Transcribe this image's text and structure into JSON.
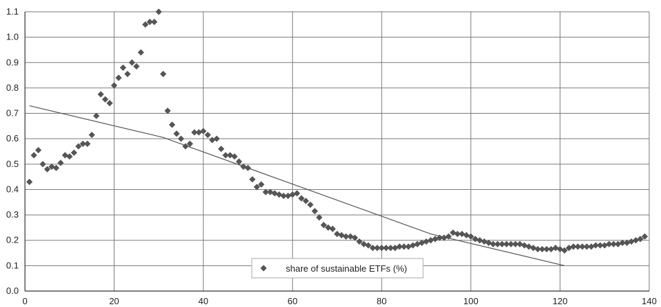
{
  "chart_data": {
    "type": "scatter",
    "title": "",
    "xlabel": "",
    "ylabel": "",
    "xlim": [
      0,
      140
    ],
    "ylim": [
      0.0,
      1.1
    ],
    "x_ticks": [
      "0",
      "20",
      "40",
      "60",
      "80",
      "100",
      "120",
      "140"
    ],
    "y_ticks": [
      "0.0",
      "0.1",
      "0.2",
      "0.3",
      "0.4",
      "0.5",
      "0.6",
      "0.7",
      "0.8",
      "0.9",
      "1.0",
      "1.1"
    ],
    "grid": true,
    "legend_position": "bottom-center",
    "colors": {
      "marker": "#555555",
      "trend": "#555555",
      "grid": "#7a7a7a",
      "axis": "#333333"
    },
    "series": [
      {
        "name": "share of sustainable ETFs (%)",
        "marker": "diamond",
        "x": [
          1,
          2,
          3,
          4,
          5,
          6,
          7,
          8,
          9,
          10,
          11,
          12,
          13,
          14,
          15,
          16,
          17,
          18,
          19,
          20,
          21,
          22,
          23,
          24,
          25,
          26,
          27,
          28,
          29,
          30,
          31,
          32,
          33,
          34,
          35,
          36,
          37,
          38,
          39,
          40,
          41,
          42,
          43,
          44,
          45,
          46,
          47,
          48,
          49,
          50,
          51,
          52,
          53,
          54,
          55,
          56,
          57,
          58,
          59,
          60,
          61,
          62,
          63,
          64,
          65,
          66,
          67,
          68,
          69,
          70,
          71,
          72,
          73,
          74,
          75,
          76,
          77,
          78,
          79,
          80,
          81,
          82,
          83,
          84,
          85,
          86,
          87,
          88,
          89,
          90,
          91,
          92,
          93,
          94,
          95,
          96,
          97,
          98,
          99,
          100,
          101,
          102,
          103,
          104,
          105,
          106,
          107,
          108,
          109,
          110,
          111,
          112,
          113,
          114,
          115,
          116,
          117,
          118,
          119,
          120,
          121,
          122,
          123,
          124,
          125,
          126,
          127,
          128,
          129,
          130,
          131,
          132,
          133,
          134,
          135,
          136,
          137,
          138,
          139
        ],
        "y": [
          0.43,
          0.535,
          0.555,
          0.5,
          0.48,
          0.49,
          0.485,
          0.505,
          0.535,
          0.53,
          0.545,
          0.57,
          0.58,
          0.58,
          0.615,
          0.69,
          0.775,
          0.755,
          0.74,
          0.81,
          0.84,
          0.88,
          0.855,
          0.9,
          0.885,
          0.94,
          1.05,
          1.06,
          1.06,
          1.1,
          0.855,
          0.71,
          0.655,
          0.62,
          0.6,
          0.57,
          0.58,
          0.625,
          0.625,
          0.63,
          0.615,
          0.595,
          0.6,
          0.56,
          0.535,
          0.535,
          0.53,
          0.51,
          0.49,
          0.485,
          0.44,
          0.41,
          0.42,
          0.39,
          0.39,
          0.385,
          0.38,
          0.375,
          0.375,
          0.38,
          0.385,
          0.365,
          0.355,
          0.34,
          0.315,
          0.29,
          0.26,
          0.25,
          0.245,
          0.225,
          0.22,
          0.215,
          0.215,
          0.21,
          0.195,
          0.185,
          0.18,
          0.17,
          0.17,
          0.17,
          0.17,
          0.17,
          0.17,
          0.175,
          0.175,
          0.175,
          0.18,
          0.185,
          0.19,
          0.195,
          0.2,
          0.205,
          0.21,
          0.21,
          0.215,
          0.23,
          0.225,
          0.225,
          0.22,
          0.215,
          0.205,
          0.2,
          0.195,
          0.19,
          0.185,
          0.185,
          0.185,
          0.185,
          0.185,
          0.185,
          0.185,
          0.18,
          0.175,
          0.17,
          0.165,
          0.165,
          0.165,
          0.165,
          0.17,
          0.165,
          0.16,
          0.17,
          0.175,
          0.175,
          0.175,
          0.175,
          0.175,
          0.18,
          0.18,
          0.18,
          0.185,
          0.185,
          0.185,
          0.19,
          0.19,
          0.195,
          0.2,
          0.205,
          0.215
        ]
      }
    ],
    "trendline": {
      "x": [
        1,
        31,
        91,
        121
      ],
      "y": [
        0.73,
        0.605,
        0.225,
        0.1
      ]
    },
    "legend": {
      "label": "share of sustainable ETFs (%)"
    }
  }
}
